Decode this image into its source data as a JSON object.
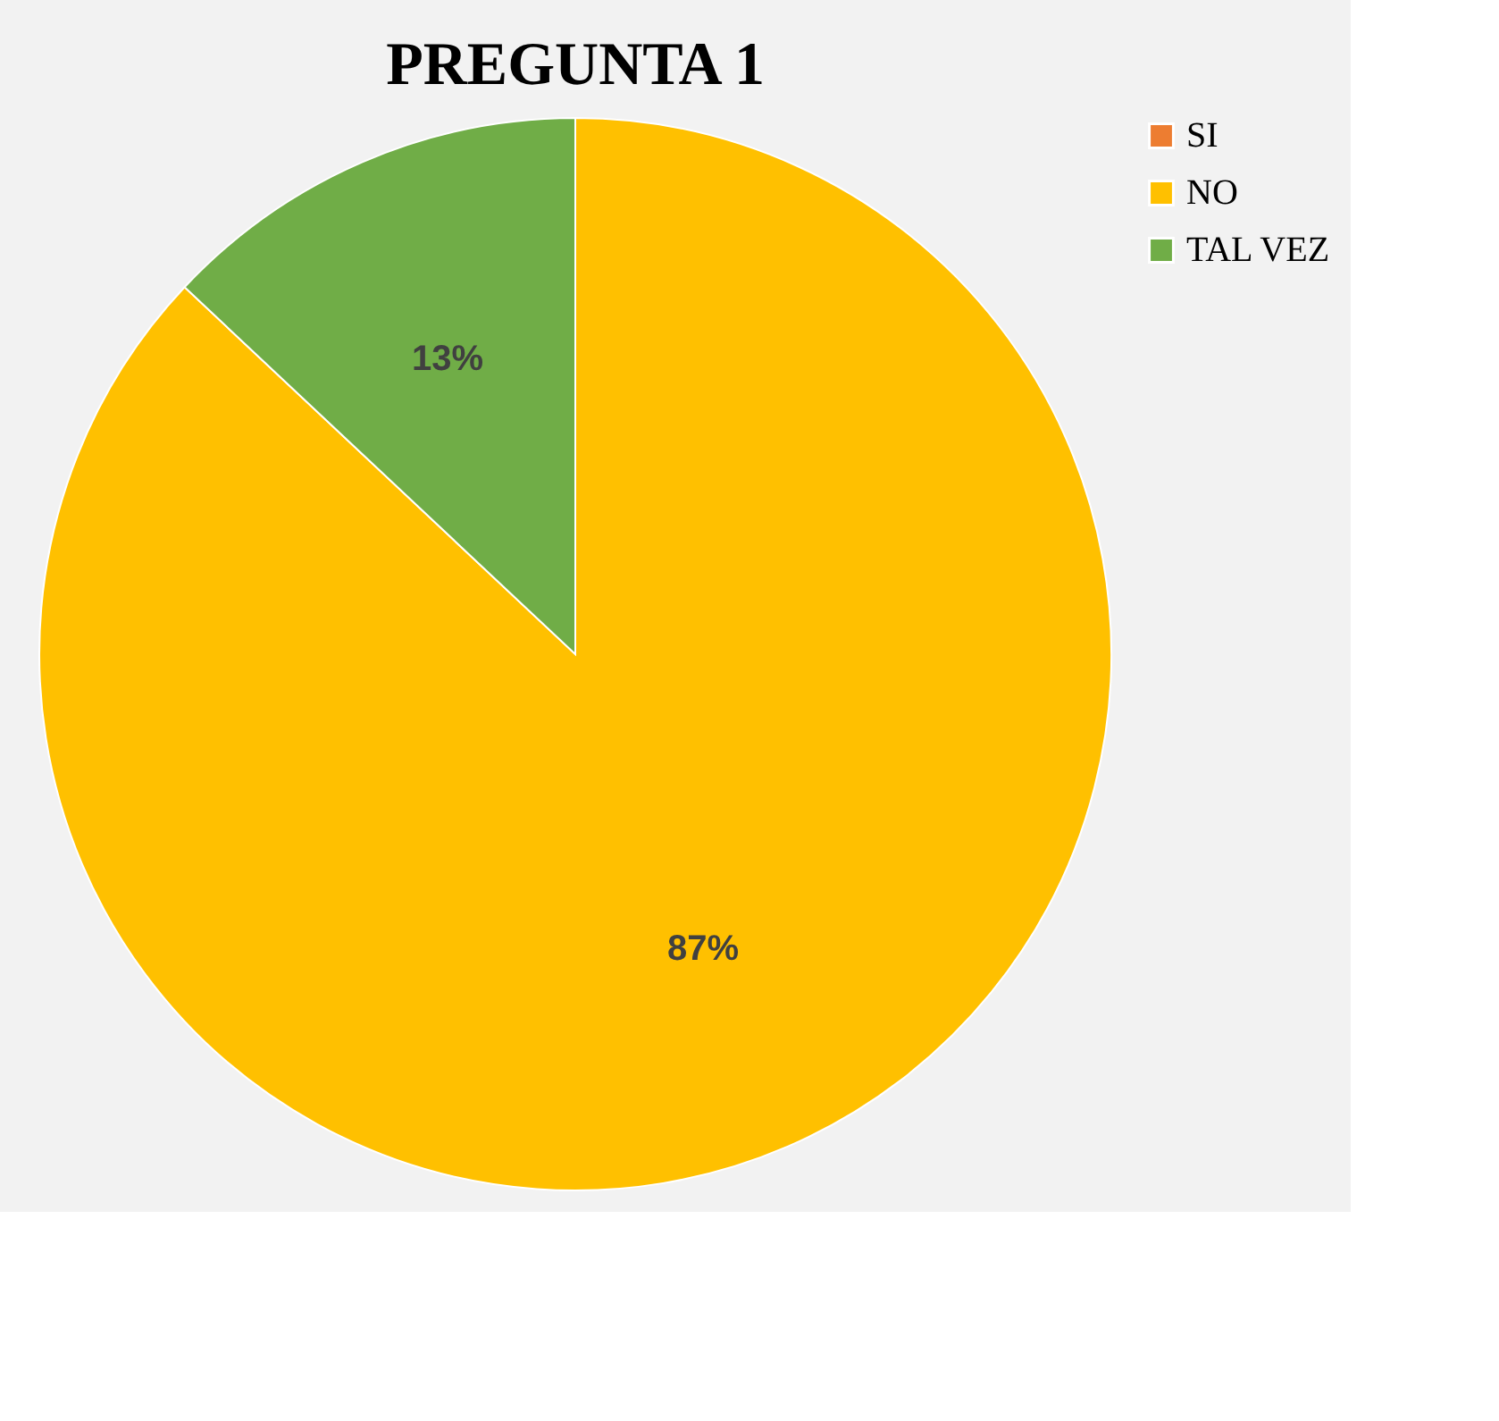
{
  "chart_data": {
    "type": "pie",
    "title": "PREGUNTA 1",
    "categories": [
      "SI",
      "NO",
      "TAL VEZ"
    ],
    "values": [
      0,
      87,
      13
    ],
    "colors": [
      "#ed7d31",
      "#ffc000",
      "#70ad47"
    ],
    "value_labels": [
      null,
      "87%",
      "13%"
    ],
    "legend": "right"
  }
}
